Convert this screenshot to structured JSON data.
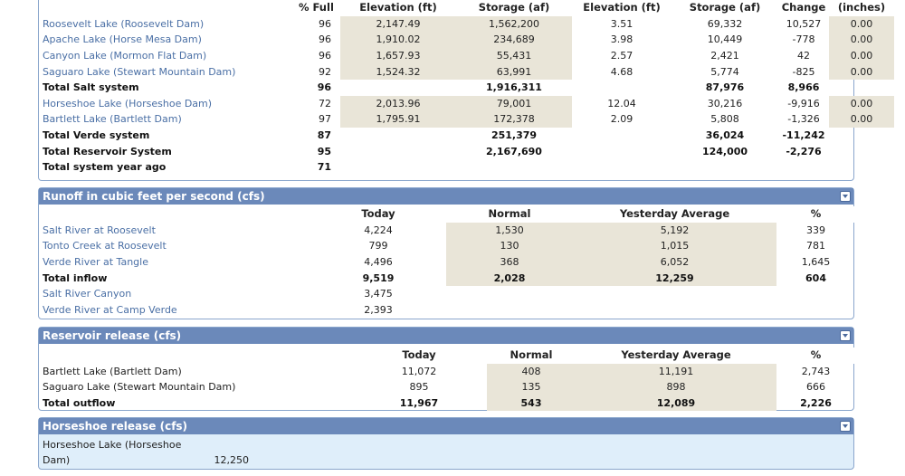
{
  "reservoirs": {
    "headers": [
      "% Full",
      "Elevation (ft)",
      "Storage (af)",
      "Elevation (ft)",
      "Storage (af)",
      "Change",
      "(inches)"
    ],
    "rows": [
      {
        "name": "Roosevelt Lake (Roosevelt Dam)",
        "full": "96",
        "elev": "2,147.49",
        "storage": "1,562,200",
        "elev2": "3.51",
        "storage2": "69,332",
        "change": "10,527",
        "inches": "0.00"
      },
      {
        "name": "Apache Lake (Horse Mesa Dam)",
        "full": "96",
        "elev": "1,910.02",
        "storage": "234,689",
        "elev2": "3.98",
        "storage2": "10,449",
        "change": "-778",
        "inches": "0.00"
      },
      {
        "name": "Canyon Lake (Mormon Flat Dam)",
        "full": "96",
        "elev": "1,657.93",
        "storage": "55,431",
        "elev2": "2.57",
        "storage2": "2,421",
        "change": "42",
        "inches": "0.00"
      },
      {
        "name": "Saguaro Lake (Stewart Mountain Dam)",
        "full": "92",
        "elev": "1,524.32",
        "storage": "63,991",
        "elev2": "4.68",
        "storage2": "5,774",
        "change": "-825",
        "inches": "0.00"
      }
    ],
    "total_salt": {
      "name": "Total Salt system",
      "full": "96",
      "storage": "1,916,311",
      "storage2": "87,976",
      "change": "8,966"
    },
    "verde_rows": [
      {
        "name": "Horseshoe Lake (Horseshoe Dam)",
        "full": "72",
        "elev": "2,013.96",
        "storage": "79,001",
        "elev2": "12.04",
        "storage2": "30,216",
        "change": "-9,916",
        "inches": "0.00"
      },
      {
        "name": "Bartlett Lake (Bartlett Dam)",
        "full": "97",
        "elev": "1,795.91",
        "storage": "172,378",
        "elev2": "2.09",
        "storage2": "5,808",
        "change": "-1,326",
        "inches": "0.00"
      }
    ],
    "total_verde": {
      "name": "Total Verde system",
      "full": "87",
      "storage": "251,379",
      "storage2": "36,024",
      "change": "-11,242"
    },
    "total_system": {
      "name": "Total Reservoir System",
      "full": "95",
      "storage": "2,167,690",
      "storage2": "124,000",
      "change": "-2,276"
    },
    "total_year_ago": {
      "name": "Total system year ago",
      "full": "71"
    }
  },
  "runoff": {
    "title": "Runoff in cubic feet per second (cfs)",
    "headers": [
      "Today",
      "Normal",
      "Yesterday Average",
      "%"
    ],
    "rows": [
      {
        "name": "Salt River at Roosevelt",
        "today": "4,224",
        "normal": "1,530",
        "yest": "5,192",
        "pct": "339"
      },
      {
        "name": "Tonto Creek at Roosevelt",
        "today": "799",
        "normal": "130",
        "yest": "1,015",
        "pct": "781"
      },
      {
        "name": "Verde River at Tangle",
        "today": "4,496",
        "normal": "368",
        "yest": "6,052",
        "pct": "1,645"
      }
    ],
    "total": {
      "name": "Total inflow",
      "today": "9,519",
      "normal": "2,028",
      "yest": "12,259",
      "pct": "604"
    },
    "extra": [
      {
        "name": "Salt River Canyon",
        "today": "3,475"
      },
      {
        "name": "Verde River at Camp Verde",
        "today": "2,393"
      }
    ]
  },
  "release": {
    "title": "Reservoir release (cfs)",
    "headers": [
      "Today",
      "Normal",
      "Yesterday Average",
      "%"
    ],
    "rows": [
      {
        "name": "Bartlett Lake (Bartlett Dam)",
        "today": "11,072",
        "normal": "408",
        "yest": "11,191",
        "pct": "2,743"
      },
      {
        "name": "Saguaro Lake (Stewart Mountain Dam)",
        "today": "895",
        "normal": "135",
        "yest": "898",
        "pct": "666"
      }
    ],
    "total": {
      "name": "Total outflow",
      "today": "11,967",
      "normal": "543",
      "yest": "12,089",
      "pct": "2,226"
    }
  },
  "horseshoe": {
    "title": "Horseshoe release (cfs)",
    "name": "Horseshoe Lake (Horseshoe Dam)",
    "value": "12,250"
  }
}
